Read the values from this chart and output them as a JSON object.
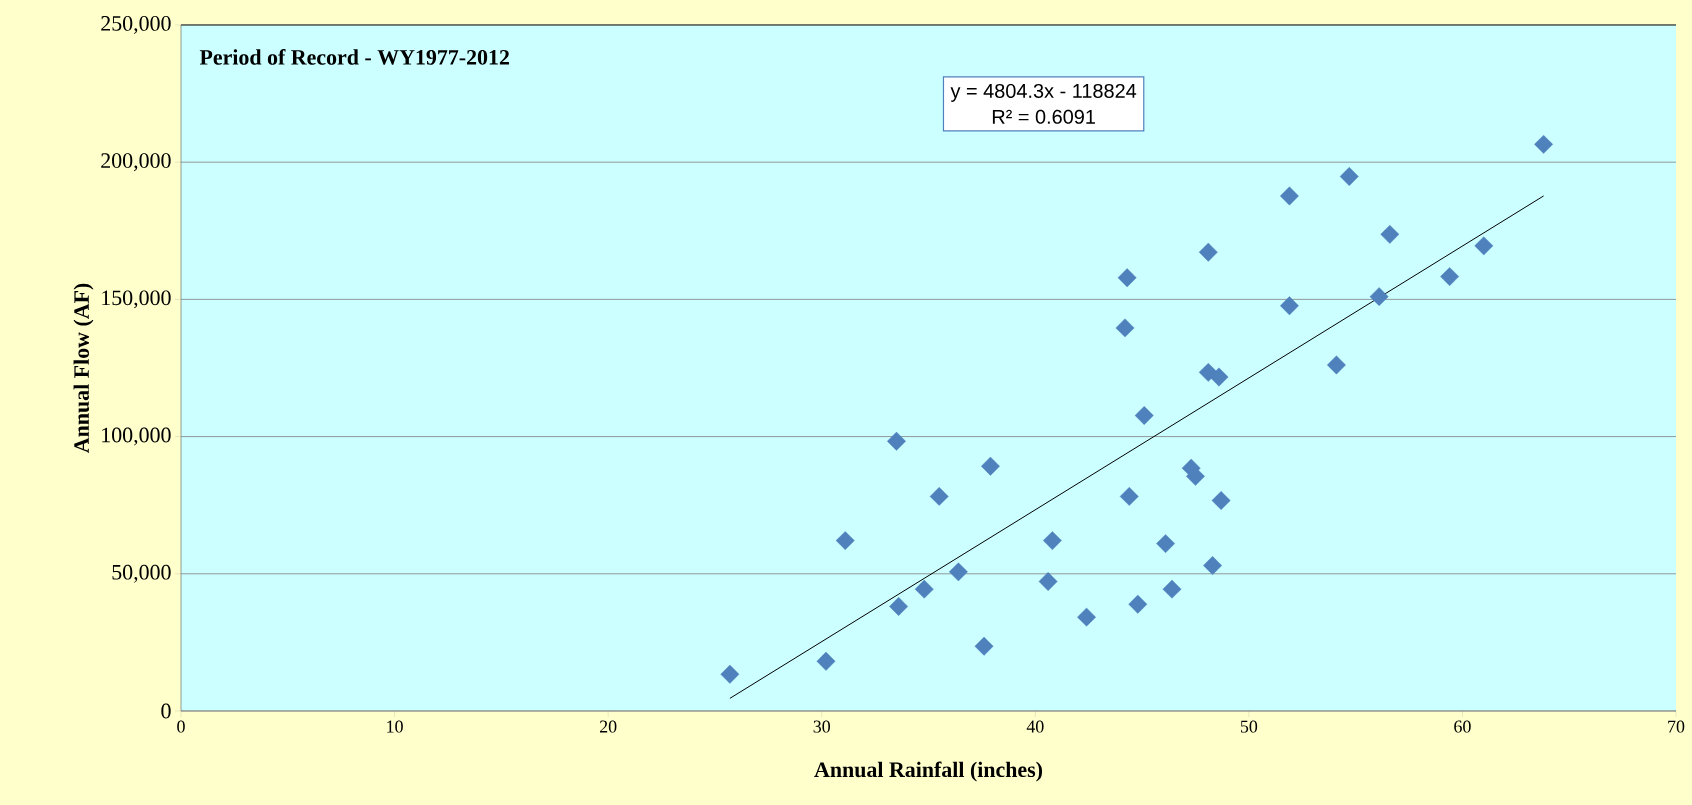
{
  "chart_data": {
    "type": "scatter",
    "title": "Period of Record - WY1977-2012",
    "xlabel": "Annual Rainfall (inches)",
    "ylabel": "Annual Flow (AF)",
    "annotations": [
      "y = 4804.3x - 118824",
      "R² = 0.6091"
    ],
    "xlim": [
      0,
      70
    ],
    "xticks": [
      0,
      10,
      20,
      30,
      40,
      50,
      60,
      70
    ],
    "ylim": [
      0,
      250000
    ],
    "yticks": [
      0,
      {
        "value": 50000,
        "label": "50,000"
      },
      {
        "value": 100000,
        "label": "100,000"
      },
      {
        "value": 150000,
        "label": "150,000"
      },
      {
        "value": 200000,
        "label": "200,000"
      },
      {
        "value": 250000,
        "label": "250,000"
      }
    ],
    "grid": "y",
    "series": [
      {
        "type": "scatter",
        "marker": "diamond",
        "color": "#4f81bd",
        "x": [
          25.7,
          30.2,
          31.1,
          33.5,
          33.6,
          34.8,
          35.5,
          36.4,
          37.9,
          37.6,
          40.8,
          40.6,
          44.4,
          42.4,
          44.8,
          45.1,
          63.8,
          54.7,
          51.9,
          56.6,
          61.0,
          48.1,
          59.4,
          44.3,
          56.1,
          51.9,
          44.2,
          54.1,
          48.1,
          48.6,
          47.3,
          47.5,
          48.7,
          46.1,
          46.4,
          48.3
        ],
        "values": [
          13400,
          18100,
          62100,
          98300,
          38100,
          44400,
          78200,
          50700,
          89200,
          23600,
          62100,
          47200,
          78200,
          34200,
          38900,
          107700,
          206500,
          194800,
          187700,
          173700,
          169500,
          167200,
          158300,
          157900,
          151000,
          147700,
          139600,
          126100,
          123400,
          121700,
          88500,
          85500,
          76700,
          61000,
          44400,
          53000
        ]
      },
      {
        "type": "line",
        "marker": "none",
        "color": "#000000",
        "x": [
          25.7,
          63.8
        ],
        "values": [
          4600,
          187700
        ]
      }
    ]
  }
}
